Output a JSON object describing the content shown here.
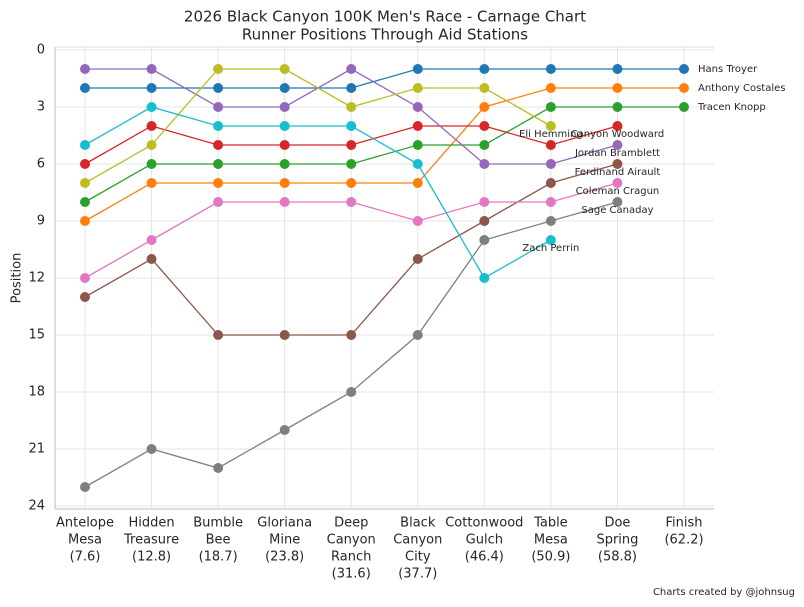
{
  "chart_data": {
    "type": "line",
    "title": "2026 Black Canyon 100K Men's Race - Carnage Chart",
    "subtitle": "Runner Positions Through Aid Stations",
    "y_label": "Position",
    "footer": "Charts created by @johnsug",
    "categories": [
      [
        "Antelope",
        "Mesa",
        "(7.6)"
      ],
      [
        "Hidden",
        "Treasure",
        "(12.8)"
      ],
      [
        "Bumble",
        "Bee",
        "(18.7)"
      ],
      [
        "Gloriana",
        "Mine",
        "(23.8)"
      ],
      [
        "Deep",
        "Canyon",
        "Ranch",
        "(31.6)"
      ],
      [
        "Black",
        "Canyon",
        "City",
        "(37.7)"
      ],
      [
        "Cottonwood",
        "Gulch",
        "(46.4)"
      ],
      [
        "Table",
        "Mesa",
        "(50.9)"
      ],
      [
        "Doe",
        "Spring",
        "(58.8)"
      ],
      [
        "Finish",
        "(62.2)"
      ]
    ],
    "ylim": [
      0,
      24
    ],
    "y_inverted": true,
    "yticks": [
      0,
      3,
      6,
      9,
      12,
      15,
      18,
      21,
      24
    ],
    "grid": true,
    "series": [
      {
        "name": "Hans Troyer",
        "color": "#1f77b4",
        "values": [
          2,
          2,
          2,
          2,
          2,
          1,
          1,
          1,
          1,
          1
        ]
      },
      {
        "name": "Anthony Costales",
        "color": "#ff7f0e",
        "values": [
          9,
          7,
          7,
          7,
          7,
          7,
          3,
          2,
          2,
          2
        ]
      },
      {
        "name": "Tracen Knopp",
        "color": "#2ca02c",
        "values": [
          8,
          6,
          6,
          6,
          6,
          5,
          5,
          3,
          3,
          3
        ]
      },
      {
        "name": "Canyon Woodward",
        "color": "#d62728",
        "values": [
          6,
          4,
          5,
          5,
          5,
          4,
          4,
          5,
          4,
          null
        ]
      },
      {
        "name": "Jordan Bramblett",
        "color": "#9467bd",
        "values": [
          1,
          1,
          3,
          3,
          1,
          3,
          6,
          6,
          5,
          null
        ]
      },
      {
        "name": "Ferdinand Airault",
        "color": "#8c564b",
        "values": [
          13,
          11,
          15,
          15,
          15,
          11,
          9,
          7,
          6,
          null
        ]
      },
      {
        "name": "Coleman Cragun",
        "color": "#e377c2",
        "values": [
          12,
          10,
          8,
          8,
          8,
          9,
          8,
          8,
          7,
          null
        ]
      },
      {
        "name": "Sage Canaday",
        "color": "#7f7f7f",
        "values": [
          23,
          21,
          22,
          20,
          18,
          15,
          10,
          9,
          8,
          null
        ]
      },
      {
        "name": "Eli Hemming",
        "color": "#bcbd22",
        "values": [
          7,
          5,
          1,
          1,
          3,
          2,
          2,
          4,
          null,
          null
        ]
      },
      {
        "name": "Zach Perrin",
        "color": "#17becf",
        "values": [
          5,
          3,
          4,
          4,
          4,
          6,
          12,
          10,
          null,
          null
        ]
      }
    ]
  }
}
